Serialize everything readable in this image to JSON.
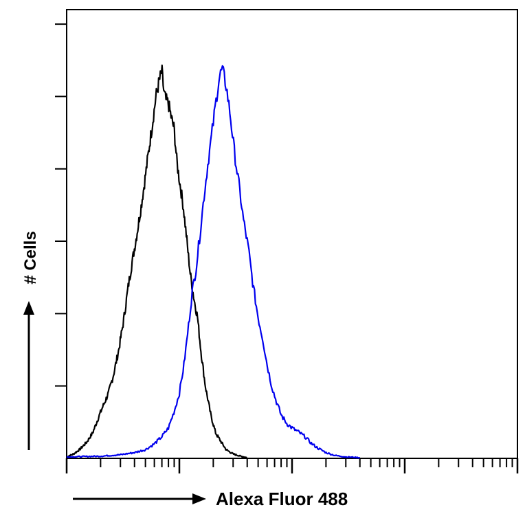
{
  "chart_data": {
    "type": "line",
    "title": "",
    "xlabel": "Alexa Fluor 488",
    "ylabel": "# Cells",
    "x_scale": "log",
    "xlim": [
      1,
      10000
    ],
    "ylim": [
      0,
      6.2
    ],
    "grid": false,
    "legend": "none",
    "series": [
      {
        "color": "#000000",
        "points": [
          [
            1.0,
            0.02
          ],
          [
            1.15,
            0.06
          ],
          [
            1.3,
            0.12
          ],
          [
            1.5,
            0.22
          ],
          [
            1.7,
            0.35
          ],
          [
            1.9,
            0.55
          ],
          [
            2.1,
            0.72
          ],
          [
            2.35,
            0.9
          ],
          [
            2.6,
            1.15
          ],
          [
            2.9,
            1.5
          ],
          [
            3.2,
            1.9
          ],
          [
            3.5,
            2.35
          ],
          [
            3.8,
            2.7
          ],
          [
            4.2,
            3.1
          ],
          [
            4.6,
            3.5
          ],
          [
            5.0,
            3.9
          ],
          [
            5.4,
            4.3
          ],
          [
            5.8,
            4.65
          ],
          [
            6.2,
            5.0
          ],
          [
            6.6,
            5.2
          ],
          [
            7.0,
            5.35
          ],
          [
            7.3,
            5.05
          ],
          [
            7.6,
            4.95
          ],
          [
            8.0,
            4.9
          ],
          [
            8.5,
            4.7
          ],
          [
            9.0,
            4.55
          ],
          [
            9.5,
            4.1
          ],
          [
            10.0,
            3.85
          ],
          [
            10.8,
            3.5
          ],
          [
            11.5,
            3.1
          ],
          [
            12.5,
            2.55
          ],
          [
            13.5,
            2.2
          ],
          [
            14.5,
            1.95
          ],
          [
            15.5,
            1.5
          ],
          [
            17.0,
            1.0
          ],
          [
            19.0,
            0.6
          ],
          [
            21.0,
            0.35
          ],
          [
            23.0,
            0.25
          ],
          [
            26.0,
            0.12
          ],
          [
            30.0,
            0.06
          ],
          [
            35.0,
            0.03
          ],
          [
            40.0,
            0.01
          ]
        ]
      },
      {
        "color": "#0000ee",
        "points": [
          [
            1.0,
            0.02
          ],
          [
            2.0,
            0.03
          ],
          [
            3.0,
            0.05
          ],
          [
            4.0,
            0.08
          ],
          [
            5.0,
            0.12
          ],
          [
            6.0,
            0.2
          ],
          [
            7.0,
            0.3
          ],
          [
            8.0,
            0.42
          ],
          [
            9.0,
            0.65
          ],
          [
            10.0,
            0.9
          ],
          [
            11.0,
            1.3
          ],
          [
            12.0,
            1.8
          ],
          [
            13.0,
            2.3
          ],
          [
            14.0,
            2.6
          ],
          [
            15.0,
            3.0
          ],
          [
            16.5,
            3.6
          ],
          [
            18.0,
            4.1
          ],
          [
            19.5,
            4.5
          ],
          [
            21.0,
            4.9
          ],
          [
            22.5,
            5.25
          ],
          [
            24.0,
            5.38
          ],
          [
            26.0,
            5.15
          ],
          [
            28.0,
            4.8
          ],
          [
            31.0,
            4.2
          ],
          [
            34.0,
            3.75
          ],
          [
            37.0,
            3.3
          ],
          [
            41.0,
            2.9
          ],
          [
            45.0,
            2.4
          ],
          [
            50.0,
            1.95
          ],
          [
            55.0,
            1.65
          ],
          [
            60.0,
            1.3
          ],
          [
            66.0,
            1.0
          ],
          [
            72.0,
            0.8
          ],
          [
            80.0,
            0.6
          ],
          [
            90.0,
            0.48
          ],
          [
            100.0,
            0.42
          ],
          [
            115.0,
            0.36
          ],
          [
            130.0,
            0.3
          ],
          [
            150.0,
            0.2
          ],
          [
            170.0,
            0.14
          ],
          [
            200.0,
            0.08
          ],
          [
            240.0,
            0.04
          ],
          [
            300.0,
            0.02
          ],
          [
            400.0,
            0.01
          ]
        ]
      }
    ]
  }
}
